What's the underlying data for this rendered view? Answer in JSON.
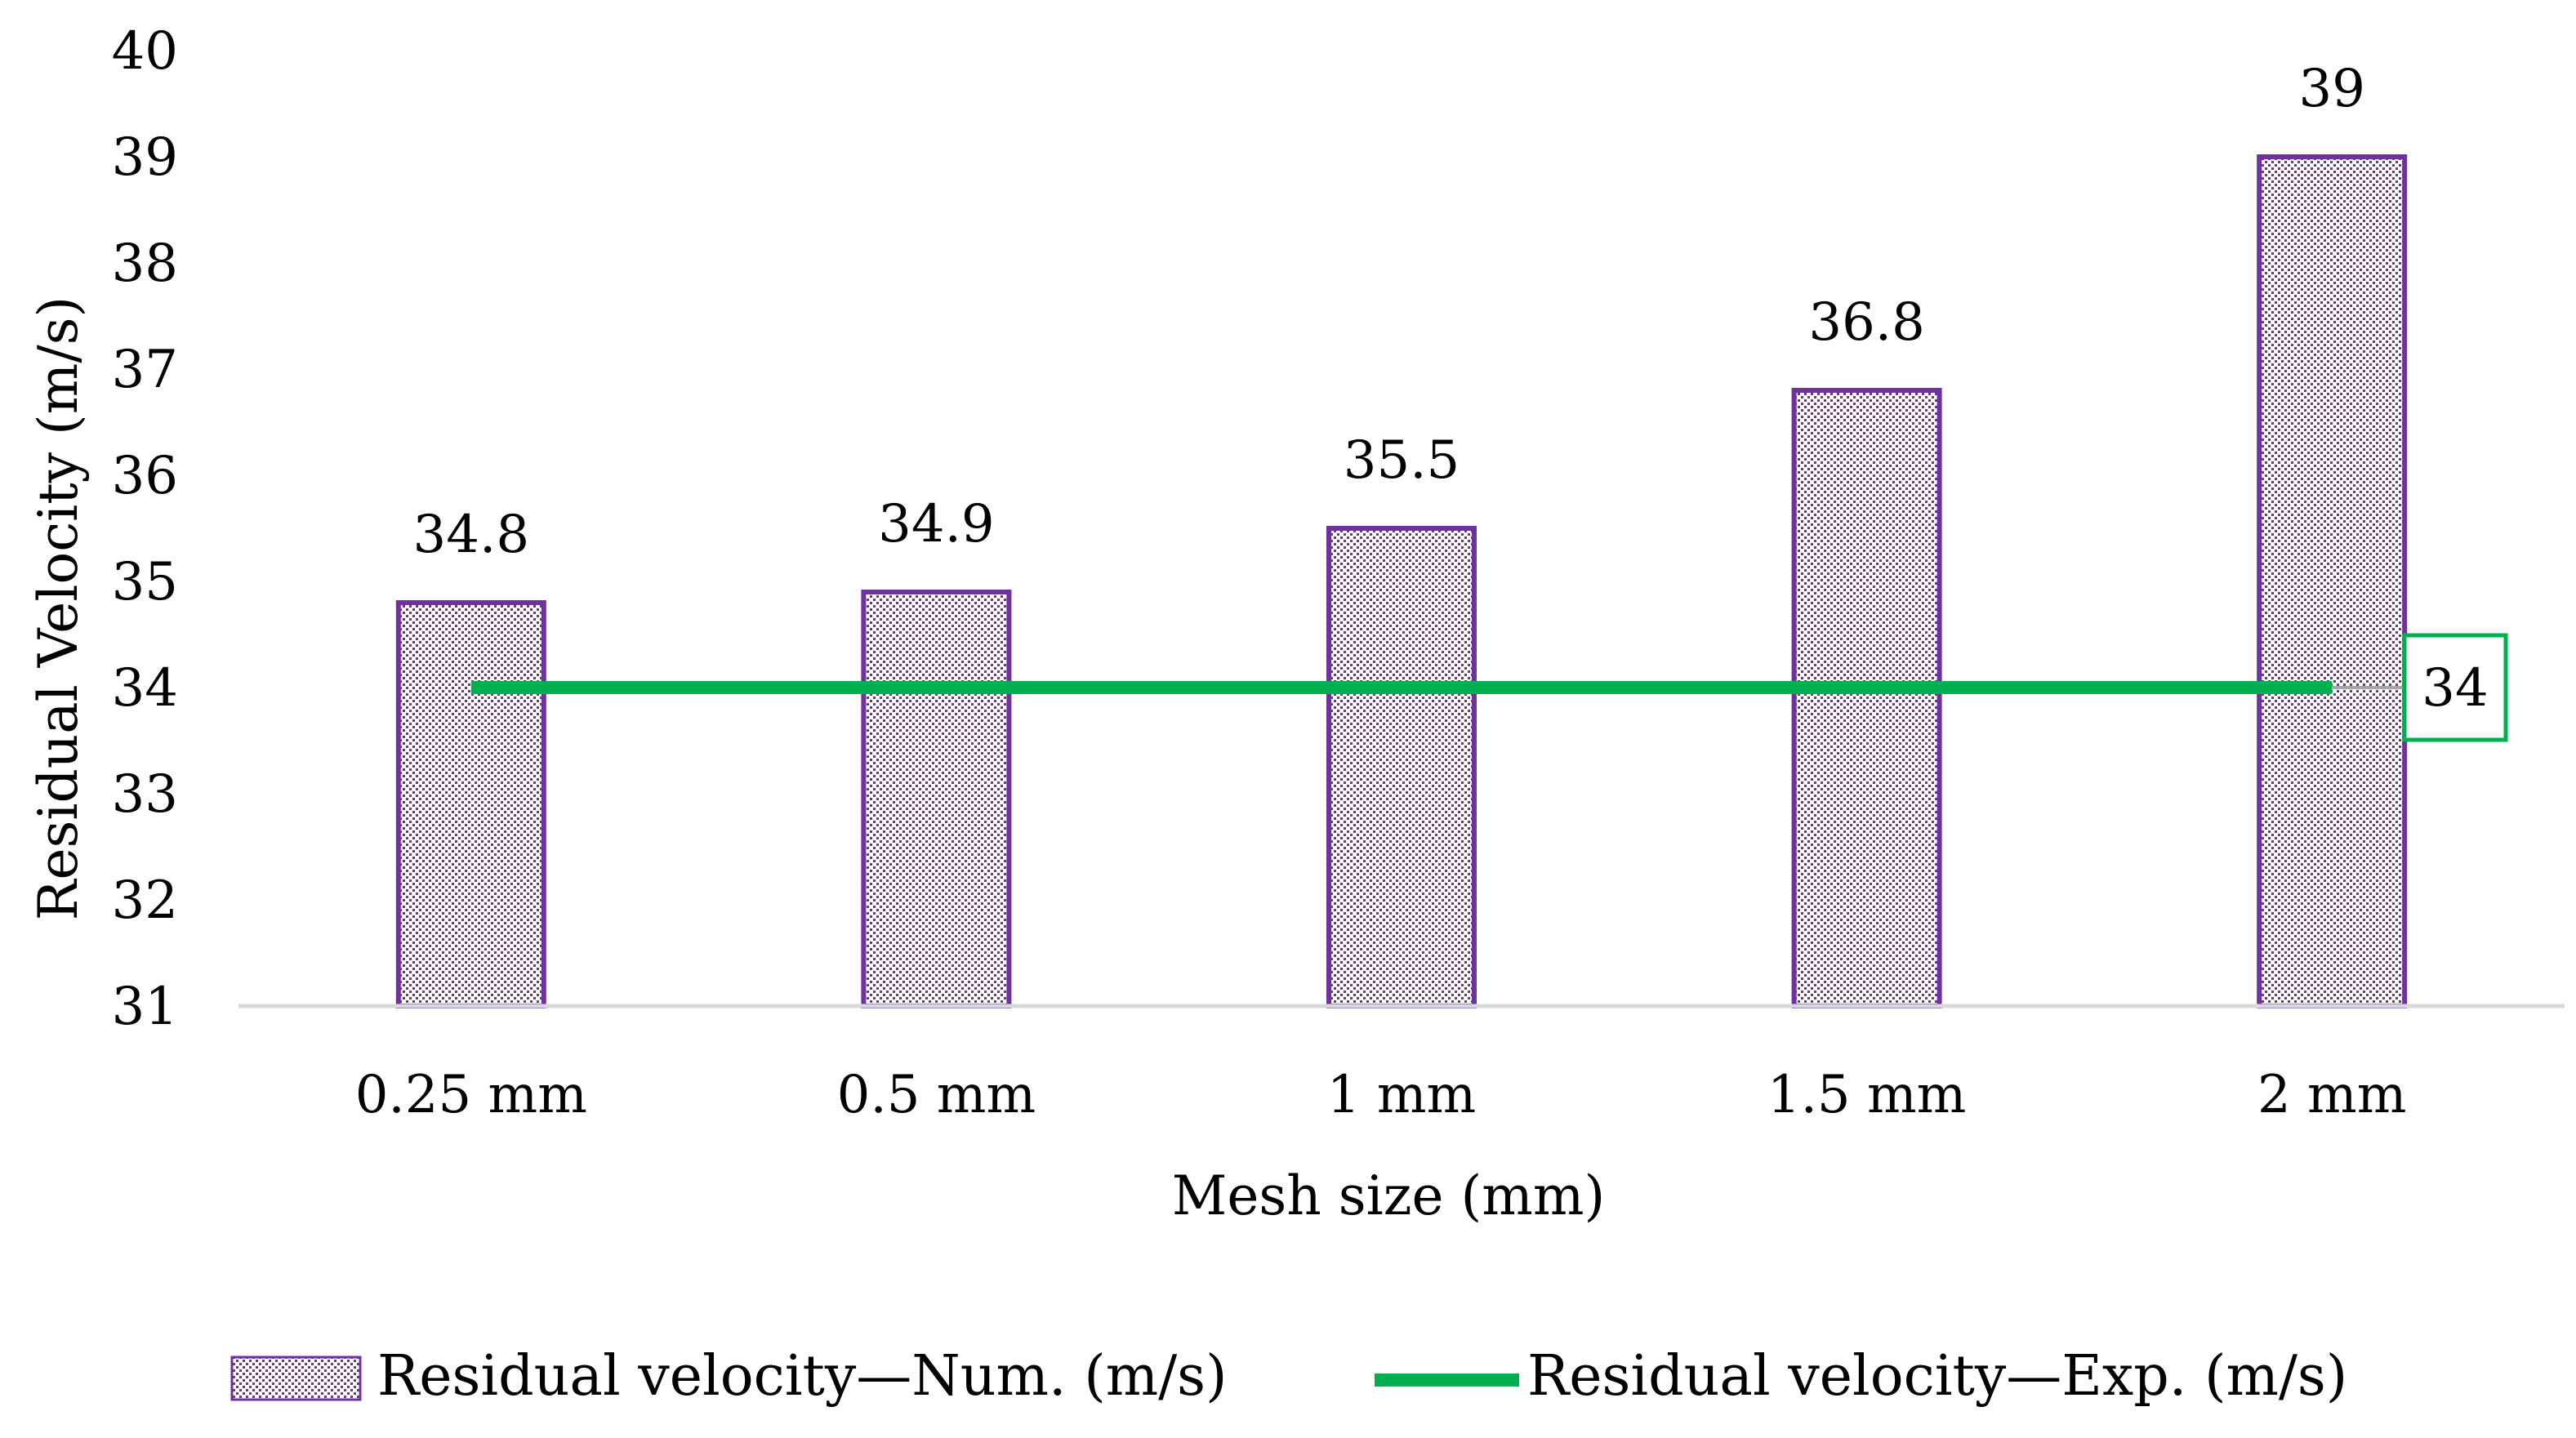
{
  "chart_data": {
    "type": "bar",
    "title": "",
    "categories": [
      "0.25 mm",
      "0.5 mm",
      "1 mm",
      "1.5 mm",
      "2 mm"
    ],
    "series": [
      {
        "name": "Residual velocity—Num. (m/s)",
        "kind": "bar",
        "values": [
          34.8,
          34.9,
          35.5,
          36.8,
          39
        ],
        "labels": [
          "34.8",
          "34.9",
          "35.5",
          "36.8",
          "39"
        ],
        "fill_pattern": "dotted",
        "color": "#7030A0"
      },
      {
        "name": "Residual velocity—Exp. (m/s)",
        "kind": "line",
        "values": [
          34,
          34,
          34,
          34,
          34
        ],
        "end_label": "34",
        "color": "#00B050"
      }
    ],
    "xlabel": "Mesh size (mm)",
    "ylabel": "Residual Velocity (m/s)",
    "ylim": [
      31,
      40
    ],
    "yticks": [
      "31",
      "32",
      "33",
      "34",
      "35",
      "36",
      "37",
      "38",
      "39",
      "40"
    ],
    "grid": false,
    "legend": "bottom"
  }
}
